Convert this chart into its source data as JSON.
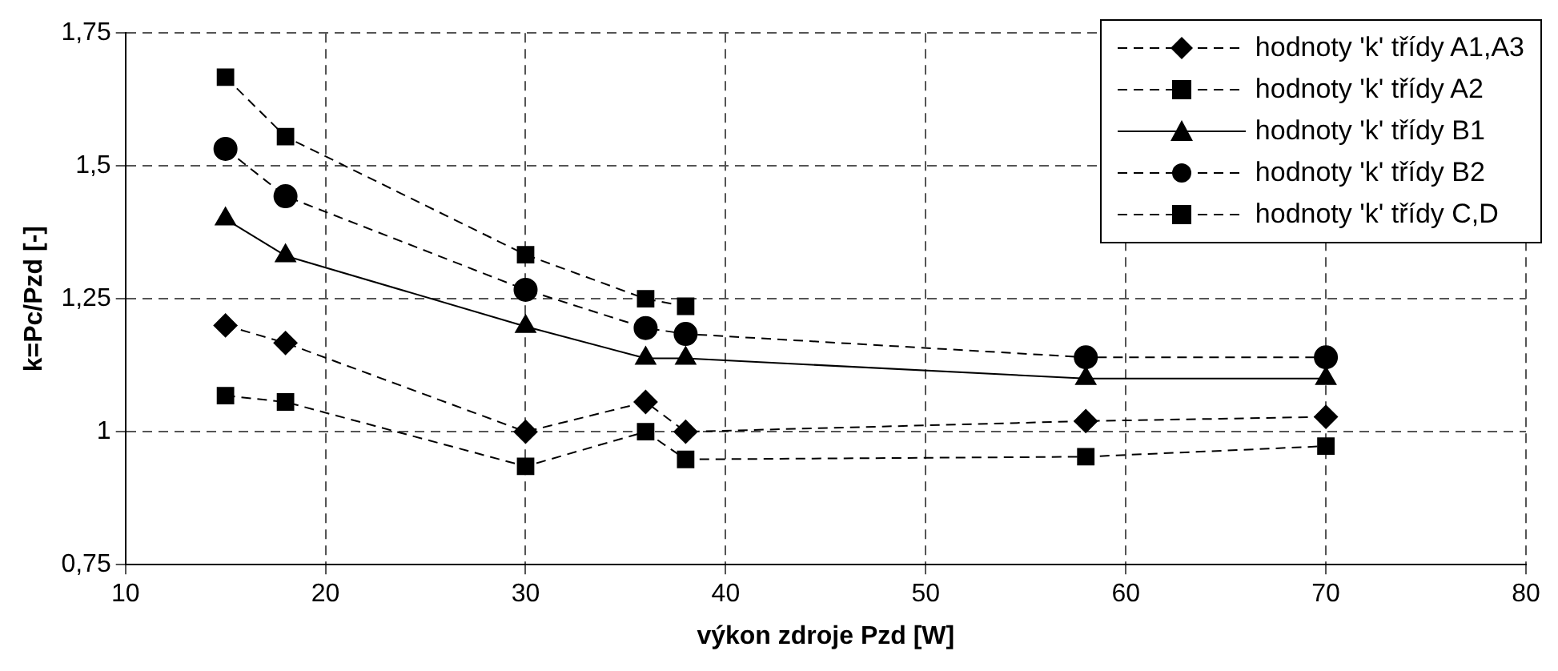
{
  "chart_data": {
    "type": "line",
    "xlabel": "výkon zdroje Pzd [W]",
    "ylabel": "k=Pc/Pzd [-]",
    "x": [
      15,
      18,
      30,
      36,
      38,
      58,
      70
    ],
    "xlim": [
      10,
      80
    ],
    "xticks": [
      10,
      20,
      30,
      40,
      50,
      60,
      70,
      80
    ],
    "ylim": [
      0.75,
      1.75
    ],
    "yticks": [
      {
        "value": 0.75,
        "label": "0,75"
      },
      {
        "value": 1,
        "label": "1"
      },
      {
        "value": 1.25,
        "label": "1,25"
      },
      {
        "value": 1.5,
        "label": "1,5"
      },
      {
        "value": 1.75,
        "label": "1,75"
      }
    ],
    "grid": true,
    "legend": "top right",
    "series": [
      {
        "name": "hodnoty 'k' třídy A1,A3",
        "color": "#000000",
        "marker": "diamond",
        "line_style": "dashed",
        "values": [
          1.2,
          1.167,
          1.0,
          1.056,
          1.0,
          1.02,
          1.028
        ]
      },
      {
        "name": "hodnoty 'k' třídy A2",
        "color": "#000000",
        "marker": "square",
        "line_style": "dashed",
        "values": [
          1.068,
          1.056,
          0.935,
          1.0,
          0.948,
          0.953,
          0.973
        ]
      },
      {
        "name": "hodnoty 'k' třídy B1",
        "color": "#000000",
        "marker": "triangle",
        "line_style": "solid",
        "values": [
          1.4,
          1.331,
          1.198,
          1.138,
          1.138,
          1.1,
          1.1
        ]
      },
      {
        "name": "hodnoty 'k' třídy B2",
        "color": "#000000",
        "marker": "circle",
        "line_style": "dashed",
        "values": [
          1.532,
          1.443,
          1.267,
          1.195,
          1.184,
          1.14,
          1.14
        ]
      },
      {
        "name": "hodnoty 'k' třídy C,D",
        "color": "#000000",
        "marker": "square",
        "line_style": "dashed",
        "values": [
          1.667,
          1.555,
          1.333,
          1.25,
          1.236,
          null,
          null
        ]
      }
    ]
  }
}
